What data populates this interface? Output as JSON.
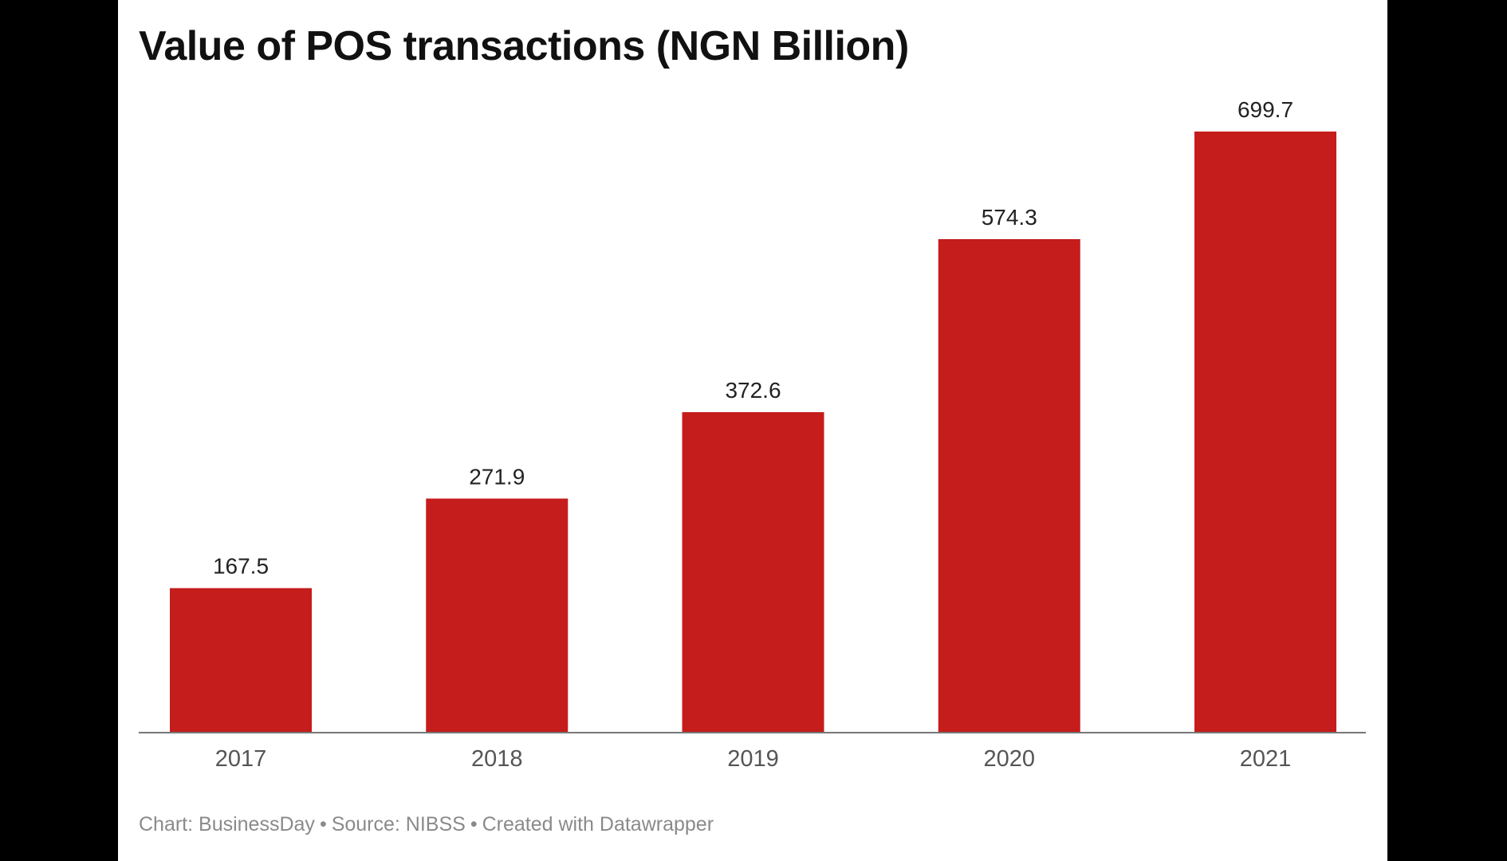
{
  "chart_data": {
    "type": "bar",
    "title": "Value of POS transactions (NGN Billion)",
    "categories": [
      "2017",
      "2018",
      "2019",
      "2020",
      "2021"
    ],
    "values": [
      167.5,
      271.9,
      372.6,
      574.3,
      699.7
    ],
    "value_labels": [
      "167.5",
      "271.9",
      "372.6",
      "574.3",
      "699.7"
    ],
    "ylim": [
      0,
      699.7
    ],
    "grid": false,
    "legend": "none",
    "bar_color": "#c51c1c"
  },
  "footer": {
    "chart": "Chart: BusinessDay",
    "source": "Source: NIBSS",
    "created": "Created with Datawrapper",
    "separator": "•"
  },
  "colors": {
    "background": "#000000",
    "panel": "#ffffff",
    "bar": "#c51c1c",
    "axis": "#777777",
    "tick_text": "#555555",
    "label_text": "#222222"
  }
}
